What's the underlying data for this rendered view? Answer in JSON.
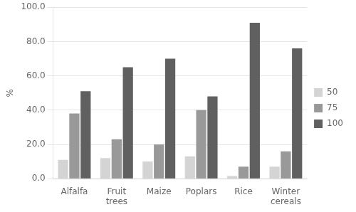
{
  "chart_data": {
    "type": "bar",
    "categories": [
      "Alfalfa",
      "Fruit\ntrees",
      "Maize",
      "Poplars",
      "Rice",
      "Winter\ncereals"
    ],
    "series": [
      {
        "name": "50",
        "color": "#d4d4d4",
        "values": [
          11,
          12,
          10,
          13,
          1.5,
          7
        ]
      },
      {
        "name": "75",
        "color": "#999999",
        "values": [
          38,
          23,
          20,
          40,
          7,
          16
        ]
      },
      {
        "name": "100",
        "color": "#606060",
        "values": [
          51,
          65,
          70,
          48,
          91,
          76
        ]
      }
    ],
    "ylabel": "%",
    "ylim": [
      0,
      100
    ],
    "yticks": [
      {
        "value": 0,
        "label": "0.0"
      },
      {
        "value": 20,
        "label": "20.0"
      },
      {
        "value": 40,
        "label": "40.0"
      },
      {
        "value": 60,
        "label": "60.0"
      },
      {
        "value": 80,
        "label": "80.0"
      },
      {
        "value": 100,
        "label": "100.0"
      }
    ],
    "grid": true,
    "legend": "right"
  }
}
